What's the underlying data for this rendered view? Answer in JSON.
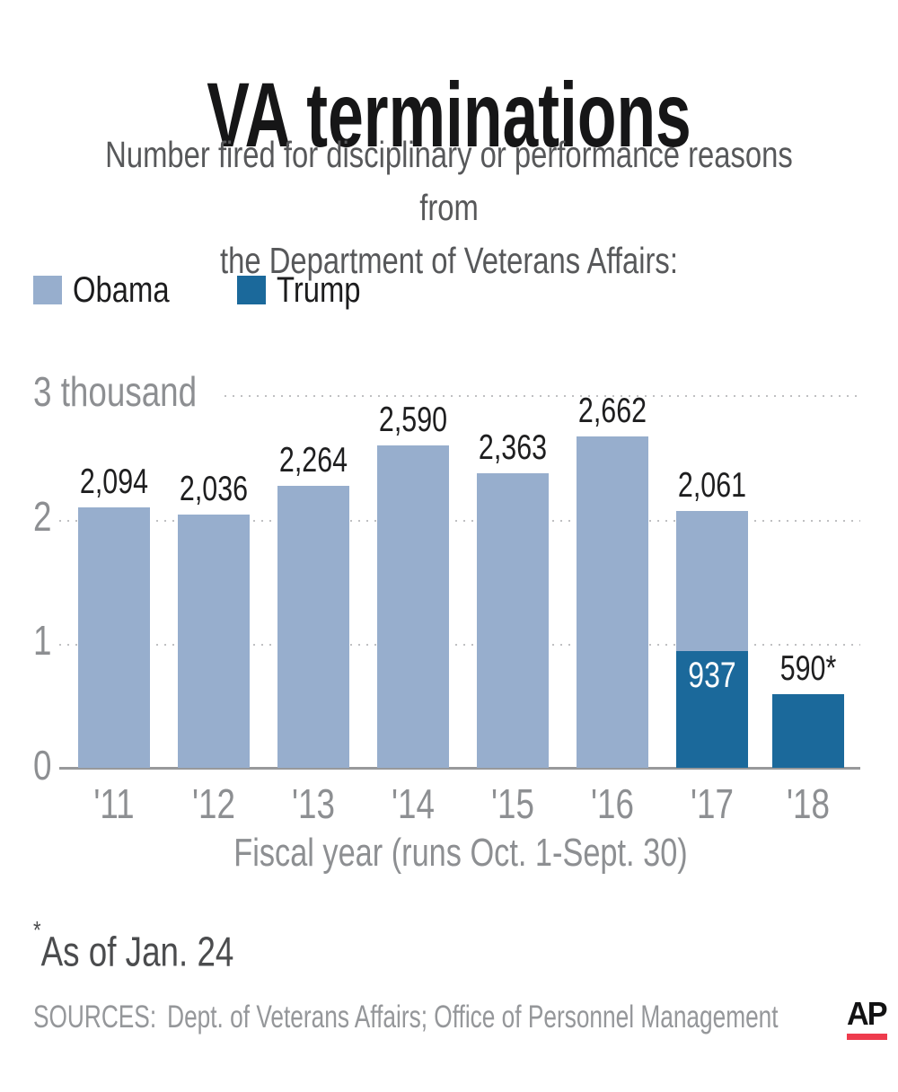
{
  "title": "VA terminations",
  "subtitle": {
    "line1": "Number fired for disciplinary or performance reasons from",
    "line2": "the Department of Veterans Affairs:"
  },
  "legend": [
    {
      "label": "Obama",
      "color": "#97aecd"
    },
    {
      "label": "Trump",
      "color": "#1b699b"
    }
  ],
  "chart_data": {
    "type": "bar",
    "stacked": true,
    "title": "VA terminations",
    "xlabel": "Fiscal year (runs Oct. 1-Sept. 30)",
    "ylabel": "thousand",
    "ylim": [
      0,
      3000
    ],
    "grid": "dotted horizontal",
    "legend_position": "top-left",
    "y_ticks": [
      {
        "label": "3 thousand",
        "value": 3000
      },
      {
        "label": "2",
        "value": 2000
      },
      {
        "label": "1",
        "value": 1000
      },
      {
        "label": "0",
        "value": 0
      }
    ],
    "categories": [
      "'11",
      "'12",
      "'13",
      "'14",
      "'15",
      "'16",
      "'17",
      "'18"
    ],
    "series_colors": {
      "Obama": "#97aecd",
      "Trump": "#1b699b"
    },
    "bars": [
      {
        "category": "'11",
        "total": 2094,
        "label": "2,094",
        "segments": [
          {
            "series": "Obama",
            "value": 2094
          }
        ]
      },
      {
        "category": "'12",
        "total": 2036,
        "label": "2,036",
        "segments": [
          {
            "series": "Obama",
            "value": 2036
          }
        ]
      },
      {
        "category": "'13",
        "total": 2264,
        "label": "2,264",
        "segments": [
          {
            "series": "Obama",
            "value": 2264
          }
        ]
      },
      {
        "category": "'14",
        "total": 2590,
        "label": "2,590",
        "segments": [
          {
            "series": "Obama",
            "value": 2590
          }
        ]
      },
      {
        "category": "'15",
        "total": 2363,
        "label": "2,363",
        "segments": [
          {
            "series": "Obama",
            "value": 2363
          }
        ]
      },
      {
        "category": "'16",
        "total": 2662,
        "label": "2,662",
        "segments": [
          {
            "series": "Obama",
            "value": 2662
          }
        ]
      },
      {
        "category": "'17",
        "total": 2061,
        "label": "2,061",
        "segments": [
          {
            "series": "Trump",
            "value": 937,
            "inner_label": "937"
          },
          {
            "series": "Obama",
            "value": 1124
          }
        ]
      },
      {
        "category": "'18",
        "total": 590,
        "label": "590*",
        "segments": [
          {
            "series": "Trump",
            "value": 590
          }
        ]
      }
    ]
  },
  "footnote": {
    "marker": "*",
    "text": "As of Jan. 24"
  },
  "sources": {
    "label": "SOURCES:",
    "text": "Dept. of Veterans Affairs; Office of Personnel Management"
  },
  "logo": {
    "text": "AP",
    "underline_color": "#ee3b4d"
  }
}
